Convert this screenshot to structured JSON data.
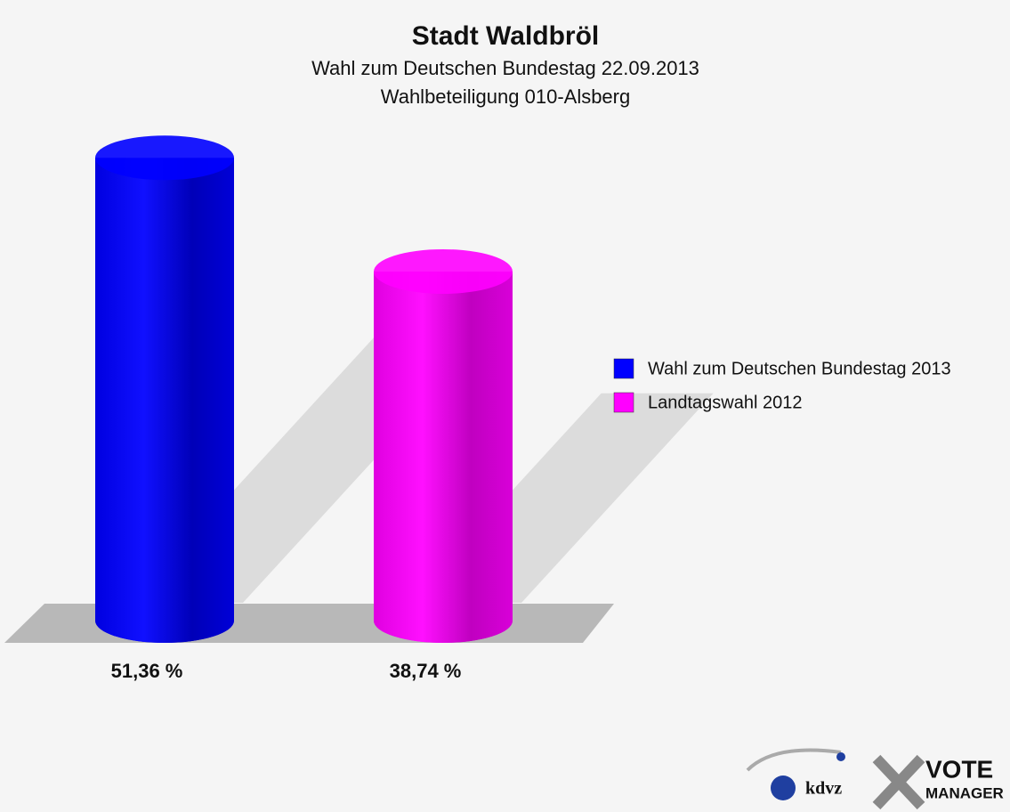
{
  "chart_data": {
    "type": "bar",
    "title": "Stadt Waldbröl",
    "subtitle": "Wahl zum Deutschen Bundestag 22.09.2013",
    "subtitle2": "Wahlbeteiligung 010-Alsberg",
    "series": [
      {
        "name": "Wahl zum Deutschen Bundestag 2013",
        "color": "#0000ff",
        "values": [
          51.36
        ],
        "value_labels": [
          "51,36 %"
        ]
      },
      {
        "name": "Landtagswahl 2012",
        "color": "#ff00ff",
        "values": [
          38.74
        ],
        "value_labels": [
          "38,74 %"
        ]
      }
    ],
    "legend": "right",
    "logo": {
      "left": "kdvz",
      "right_top": "VOTE",
      "right_bottom": "MANAGER"
    }
  }
}
